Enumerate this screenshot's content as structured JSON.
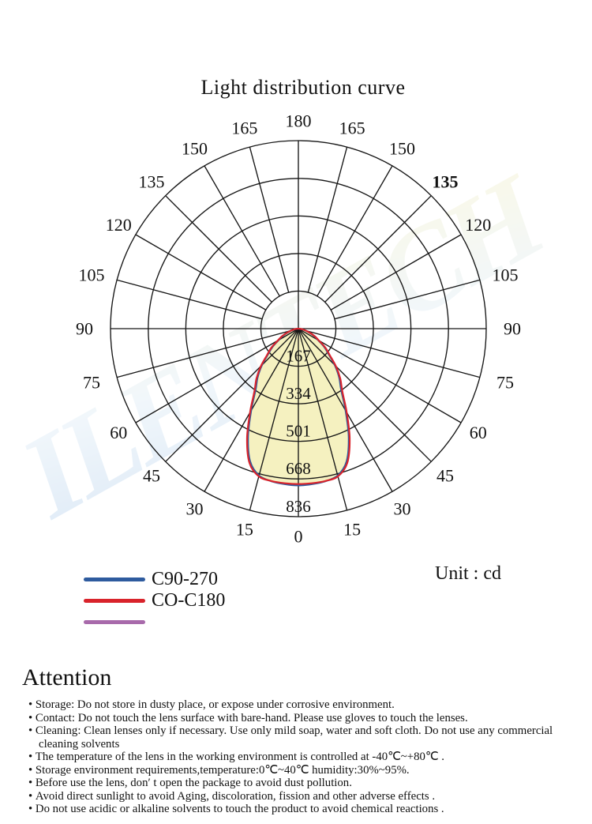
{
  "title": "Light distribution curve",
  "watermark": "ILENTECH",
  "legend": {
    "items": [
      {
        "label": "C90-270",
        "color": "#2e5b9e"
      },
      {
        "label": "CO-C180",
        "color": "#d9232b"
      },
      {
        "label": "",
        "color": "#a86aab"
      }
    ],
    "unit_label": "Unit : cd"
  },
  "attention": {
    "heading": "Attention",
    "bullets": [
      "Storage: Do not store in dusty place, or expose under corrosive environment.",
      "Contact: Do not touch the lens surface with bare-hand. Please use gloves to touch the lenses.",
      "Cleaning: Clean lenses only if necessary. Use only mild soap, water and soft cloth. Do not use any commercial cleaning solvents",
      "The temperature of the lens in the working environment is controlled at -40℃~+80℃ .",
      "Storage environment requirements,temperature:0℃~40℃  humidity:30%~95%.",
      "Before use the lens, don′ t open the package to avoid dust pollution.",
      "Avoid direct sunlight to avoid Aging, discoloration, fission and other adverse effects .",
      "Do not use acidic or alkaline solvents to touch the product to avoid  chemical reactions ."
    ]
  },
  "chart_data": {
    "type": "line",
    "subtype": "polar-photometric",
    "title": "Light distribution curve",
    "unit": "cd",
    "ring_values": [
      167,
      334,
      501,
      668,
      836
    ],
    "ring_max": 836,
    "angle_step_deg": 15,
    "angle_labels": [
      0,
      15,
      30,
      45,
      60,
      75,
      90,
      105,
      120,
      135,
      150,
      165,
      180
    ],
    "bold_right_angle_label": 135,
    "fill_color": "#f5f1c0",
    "grid_color": "#161616",
    "angles_deg": [
      -90,
      -85,
      -80,
      -75,
      -70,
      -65,
      -60,
      -55,
      -50,
      -45,
      -40,
      -35,
      -30,
      -25,
      -20,
      -15,
      -10,
      -5,
      0,
      5,
      10,
      15,
      20,
      25,
      30,
      35,
      40,
      45,
      50,
      55,
      60,
      65,
      70,
      75,
      80,
      85,
      90
    ],
    "series": [
      {
        "name": "C90-270",
        "color": "#2e5b9e",
        "values_cd": [
          0,
          7,
          18,
          33,
          52,
          77,
          101,
          140,
          175,
          229,
          282,
          332,
          420,
          530,
          628,
          676,
          689,
          694,
          697,
          694,
          689,
          676,
          628,
          530,
          420,
          332,
          282,
          229,
          175,
          140,
          101,
          77,
          52,
          33,
          18,
          7,
          0
        ]
      },
      {
        "name": "CO-C180",
        "color": "#d9232b",
        "values_cd": [
          0,
          8,
          20,
          36,
          56,
          81,
          106,
          146,
          181,
          236,
          290,
          341,
          430,
          540,
          636,
          680,
          688,
          690,
          691,
          690,
          688,
          680,
          636,
          540,
          430,
          341,
          290,
          236,
          181,
          146,
          106,
          81,
          56,
          36,
          20,
          8,
          0
        ]
      }
    ]
  }
}
